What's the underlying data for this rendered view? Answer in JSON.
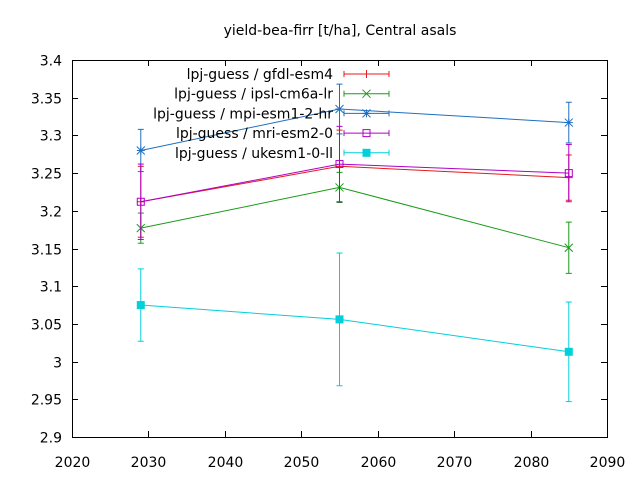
{
  "chart_data": {
    "type": "line",
    "title": "yield-bea-firr [t/ha], Central asals",
    "xlabel": "",
    "ylabel": "",
    "xlim": [
      2020,
      2090
    ],
    "ylim": [
      2.9,
      3.4
    ],
    "x_ticks": [
      "2020",
      "2030",
      "2040",
      "2050",
      "2060",
      "2070",
      "2080",
      "2090"
    ],
    "y_ticks": [
      "2.9",
      "2.95",
      "3",
      "3.05",
      "3.1",
      "3.15",
      "3.2",
      "3.25",
      "3.3",
      "3.35",
      "3.4"
    ],
    "grid": false,
    "legend_position": "top-right",
    "series": [
      {
        "name": "lpj-guess / gfdl-esm4",
        "color": "#e41a1c",
        "marker": "plus",
        "x": [
          2029,
          2055,
          2085
        ],
        "y": [
          3.212,
          3.259,
          3.244
        ],
        "err": [
          0.047,
          0.048,
          0.03
        ]
      },
      {
        "name": "lpj-guess / ipsl-cm6a-lr",
        "color": "#1a9a1a",
        "marker": "x",
        "x": [
          2029,
          2055,
          2085
        ],
        "y": [
          3.177,
          3.231,
          3.151
        ],
        "err": [
          0.02,
          0.02,
          0.034
        ]
      },
      {
        "name": "lpj-guess / mpi-esm1-2-hr",
        "color": "#1f6fc0",
        "marker": "star",
        "x": [
          2029,
          2055,
          2085
        ],
        "y": [
          3.28,
          3.335,
          3.317
        ],
        "err": [
          0.028,
          0.033,
          0.027
        ]
      },
      {
        "name": "lpj-guess / mri-esm2-0",
        "color": "#b000c8",
        "marker": "square",
        "x": [
          2029,
          2055,
          2085
        ],
        "y": [
          3.212,
          3.262,
          3.25
        ],
        "err": [
          0.05,
          0.05,
          0.038
        ]
      },
      {
        "name": "lpj-guess / ukesm1-0-ll",
        "color": "#00d0dc",
        "marker": "filled-square",
        "x": [
          2029,
          2055,
          2085
        ],
        "y": [
          3.075,
          3.056,
          3.013
        ],
        "err": [
          0.048,
          0.088,
          0.066
        ]
      }
    ]
  }
}
